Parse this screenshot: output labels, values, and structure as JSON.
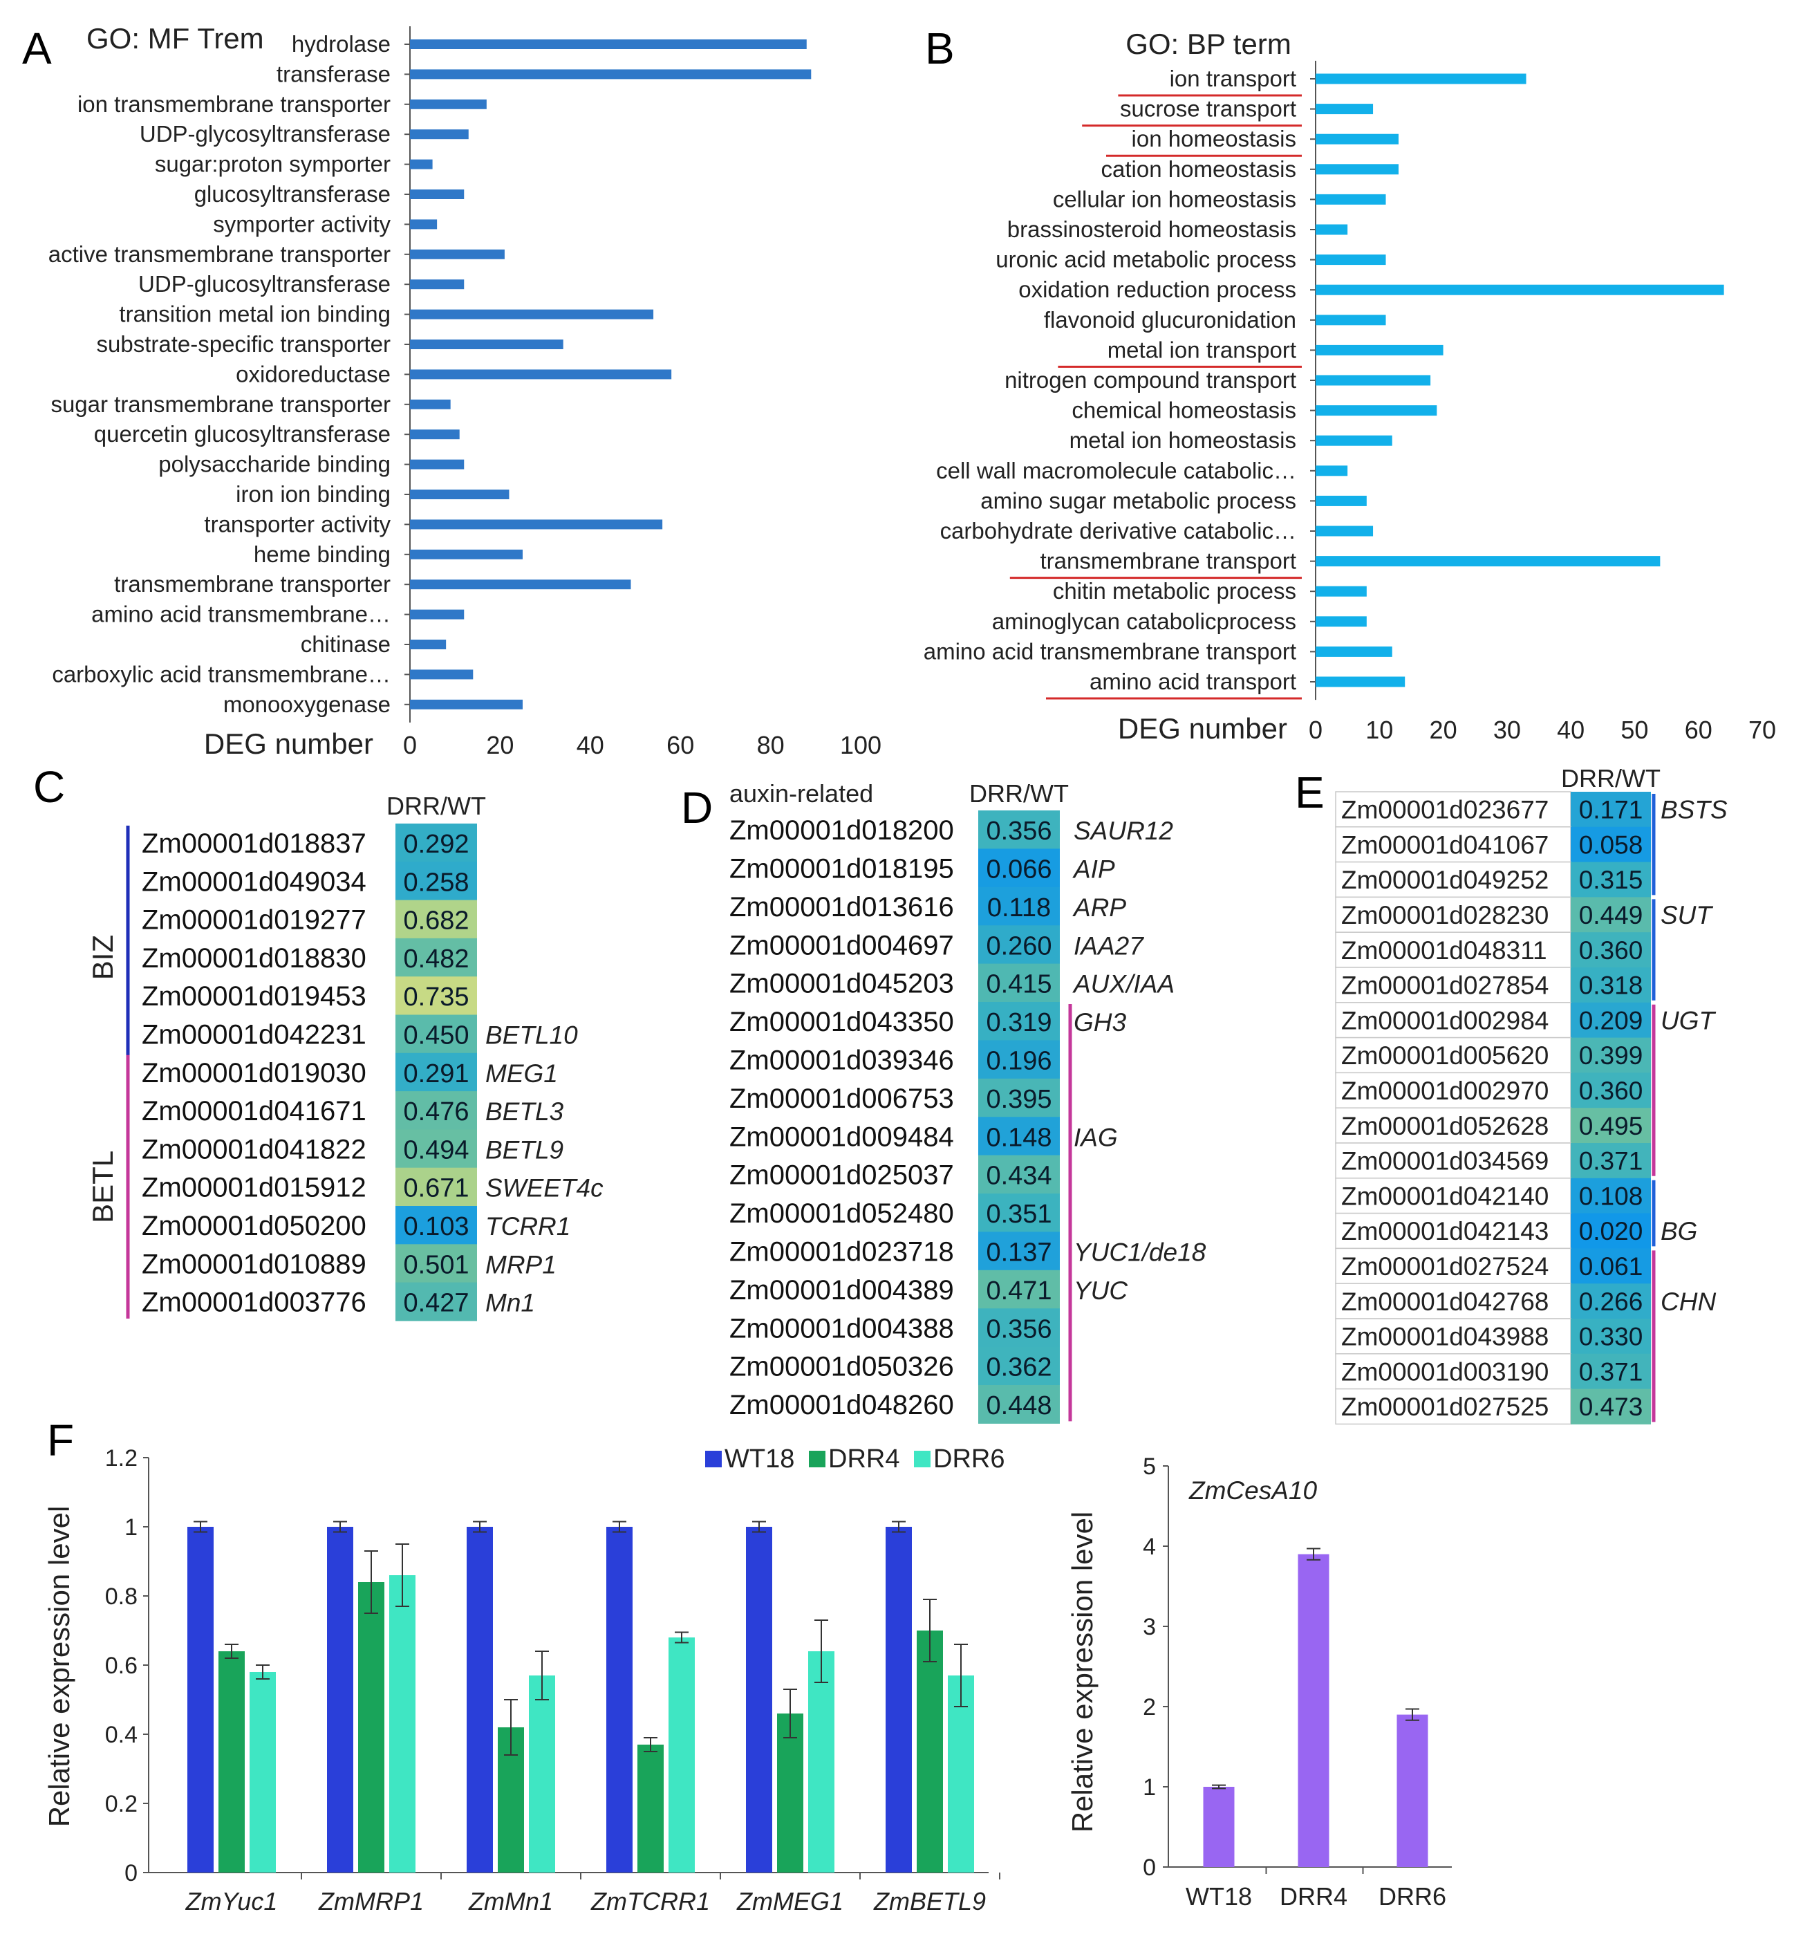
{
  "panels": {
    "A": "A",
    "B": "B",
    "C": "C",
    "D": "D",
    "E": "E",
    "F": "F"
  },
  "chart_data": [
    {
      "id": "A",
      "type": "bar",
      "orientation": "horizontal",
      "title": "GO: MF Trem",
      "xlabel": "DEG number",
      "xlim": [
        0,
        100
      ],
      "xticks": [
        0,
        20,
        40,
        60,
        80,
        100
      ],
      "color": "#2f78c8",
      "categories": [
        "hydrolase",
        "transferase",
        "ion transmembrane transporter",
        "UDP-glycosyltransferase",
        "sugar:proton  symporter",
        "glucosyltransferase",
        "symporter activity",
        "active transmembrane transporter",
        "UDP-glucosyltransferase",
        "transition metal ion binding",
        "substrate-specific transporter",
        "oxidoreductase",
        "sugar transmembrane transporter",
        "quercetin glucosyltransferase",
        "polysaccharide binding",
        "iron ion binding",
        "transporter activity",
        "heme binding",
        "transmembrane transporter",
        "amino acid transmembrane…",
        "chitinase",
        "carboxylic acid transmembrane…",
        "monooxygenase"
      ],
      "values": [
        88,
        89,
        17,
        13,
        5,
        12,
        6,
        21,
        12,
        54,
        34,
        58,
        9,
        11,
        12,
        22,
        56,
        25,
        49,
        12,
        8,
        14,
        25
      ]
    },
    {
      "id": "B",
      "type": "bar",
      "orientation": "horizontal",
      "title": "GO: BP term",
      "xlabel": "DEG number",
      "xlim": [
        0,
        70
      ],
      "xticks": [
        0,
        10,
        20,
        30,
        40,
        50,
        60,
        70
      ],
      "color": "#12b0ea",
      "underline_color": "#d42a2a",
      "categories": [
        "ion  transport",
        "sucrose transport",
        "ion homeostasis",
        "cation homeostasis",
        "cellular ion homeostasis",
        "brassinosteroid homeostasis",
        "uronic acid metabolic process",
        "oxidation reduction process",
        "flavonoid glucuronidation",
        "metal ion transport",
        "nitrogen compound transport",
        "chemical homeostasis",
        "metal ion homeostasis",
        "cell wall macromolecule catabolic…",
        "amino sugar metabolic process",
        "carbohydrate derivative catabolic…",
        "transmembrane transport",
        "chitin metabolic process",
        "aminoglycan catabolicprocess",
        "amino acid transmembrane transport",
        "amino acid transport"
      ],
      "values": [
        33,
        9,
        13,
        13,
        11,
        5,
        11,
        64,
        11,
        20,
        18,
        19,
        12,
        5,
        8,
        9,
        54,
        8,
        8,
        12,
        14
      ],
      "underlined": [
        true,
        true,
        true,
        false,
        false,
        false,
        false,
        false,
        false,
        true,
        false,
        false,
        false,
        false,
        false,
        false,
        true,
        false,
        false,
        false,
        true
      ]
    },
    {
      "id": "C",
      "type": "table",
      "header": "DRR/WT",
      "rows": [
        {
          "gene": "Zm00001d018837",
          "value": "0.292",
          "name": ""
        },
        {
          "gene": "Zm00001d049034",
          "value": "0.258",
          "name": ""
        },
        {
          "gene": "Zm00001d019277",
          "value": "0.682",
          "name": ""
        },
        {
          "gene": "Zm00001d018830",
          "value": "0.482",
          "name": ""
        },
        {
          "gene": "Zm00001d019453",
          "value": "0.735",
          "name": ""
        },
        {
          "gene": "Zm00001d042231",
          "value": "0.450",
          "name": "BETL10"
        },
        {
          "gene": "Zm00001d019030",
          "value": "0.291",
          "name": "MEG1"
        },
        {
          "gene": "Zm00001d041671",
          "value": "0.476",
          "name": "BETL3"
        },
        {
          "gene": "Zm00001d041822",
          "value": "0.494",
          "name": "BETL9"
        },
        {
          "gene": "Zm00001d015912",
          "value": "0.671",
          "name": "SWEET4c"
        },
        {
          "gene": "Zm00001d050200",
          "value": "0.103",
          "name": "TCRR1"
        },
        {
          "gene": "Zm00001d010889",
          "value": "0.501",
          "name": "MRP1"
        },
        {
          "gene": "Zm00001d003776",
          "value": "0.427",
          "name": "Mn1"
        }
      ],
      "groups": [
        {
          "name": "BIZ",
          "start": 0,
          "end": 6,
          "color": "#1f2fb8"
        },
        {
          "name": "BETL",
          "start": 6,
          "end": 12,
          "color": "#c4379a"
        }
      ]
    },
    {
      "id": "D",
      "type": "table",
      "caption": "auxin-related",
      "header": "DRR/WT",
      "rows": [
        {
          "gene": "Zm00001d018200",
          "value": "0.356",
          "name": "SAUR12"
        },
        {
          "gene": "Zm00001d018195",
          "value": "0.066",
          "name": "AIP"
        },
        {
          "gene": "Zm00001d013616",
          "value": "0.118",
          "name": "ARP"
        },
        {
          "gene": "Zm00001d004697",
          "value": "0.260",
          "name": "IAA27"
        },
        {
          "gene": "Zm00001d045203",
          "value": "0.415",
          "name": "AUX/IAA"
        },
        {
          "gene": "Zm00001d043350",
          "value": "0.319",
          "name": "GH3"
        },
        {
          "gene": "Zm00001d039346",
          "value": "0.196",
          "name": ""
        },
        {
          "gene": "Zm00001d006753",
          "value": "0.395",
          "name": ""
        },
        {
          "gene": "Zm00001d009484",
          "value": "0.148",
          "name": "IAG"
        },
        {
          "gene": "Zm00001d025037",
          "value": "0.434",
          "name": ""
        },
        {
          "gene": "Zm00001d052480",
          "value": "0.351",
          "name": ""
        },
        {
          "gene": "Zm00001d023718",
          "value": "0.137",
          "name": "YUC1/de18"
        },
        {
          "gene": "Zm00001d004389",
          "value": "0.471",
          "name": "YUC"
        },
        {
          "gene": "Zm00001d004388",
          "value": "0.356",
          "name": ""
        },
        {
          "gene": "Zm00001d050326",
          "value": "0.362",
          "name": ""
        },
        {
          "gene": "Zm00001d048260",
          "value": "0.448",
          "name": ""
        }
      ],
      "groups": [
        {
          "name": "",
          "start": 5,
          "end": 15,
          "color": "#c4379a"
        }
      ]
    },
    {
      "id": "E",
      "type": "table",
      "header": "DRR/WT",
      "rows": [
        {
          "gene": "Zm00001d023677",
          "value": "0.171",
          "name": "BSTS"
        },
        {
          "gene": "Zm00001d041067",
          "value": "0.058",
          "name": ""
        },
        {
          "gene": "Zm00001d049252",
          "value": "0.315",
          "name": ""
        },
        {
          "gene": "Zm00001d028230",
          "value": "0.449",
          "name": "SUT"
        },
        {
          "gene": "Zm00001d048311",
          "value": "0.360",
          "name": ""
        },
        {
          "gene": "Zm00001d027854",
          "value": "0.318",
          "name": ""
        },
        {
          "gene": "Zm00001d002984",
          "value": "0.209",
          "name": "UGT"
        },
        {
          "gene": "Zm00001d005620",
          "value": "0.399",
          "name": ""
        },
        {
          "gene": "Zm00001d002970",
          "value": "0.360",
          "name": ""
        },
        {
          "gene": "Zm00001d052628",
          "value": "0.495",
          "name": ""
        },
        {
          "gene": "Zm00001d034569",
          "value": "0.371",
          "name": ""
        },
        {
          "gene": "Zm00001d042140",
          "value": "0.108",
          "name": ""
        },
        {
          "gene": "Zm00001d042143",
          "value": "0.020",
          "name": "BG"
        },
        {
          "gene": "Zm00001d027524",
          "value": "0.061",
          "name": ""
        },
        {
          "gene": "Zm00001d042768",
          "value": "0.266",
          "name": "CHN"
        },
        {
          "gene": "Zm00001d043988",
          "value": "0.330",
          "name": ""
        },
        {
          "gene": "Zm00001d003190",
          "value": "0.371",
          "name": ""
        },
        {
          "gene": "Zm00001d027525",
          "value": "0.473",
          "name": ""
        }
      ],
      "groups": [
        {
          "name": "BSTS",
          "start": 0,
          "end": 2,
          "color": "#1f5fd8"
        },
        {
          "name": "SUT",
          "start": 3,
          "end": 5,
          "color": "#1f5fd8"
        },
        {
          "name": "UGT",
          "start": 6,
          "end": 10,
          "color": "#c4379a"
        },
        {
          "name": "BG",
          "start": 11,
          "end": 12,
          "color": "#1f5fd8"
        },
        {
          "name": "CHN",
          "start": 13,
          "end": 17,
          "color": "#c4379a"
        }
      ]
    },
    {
      "id": "F1",
      "type": "bar",
      "ylabel": "Relative expression level",
      "ylim": [
        0,
        1.2
      ],
      "yticks": [
        "0",
        "0.2",
        "0.4",
        "0.6",
        "0.8",
        "1",
        "1.2"
      ],
      "categories": [
        "ZmYuc1",
        "ZmMRP1",
        "ZmMn1",
        "ZmTCRR1",
        "ZmMEG1",
        "ZmBETL9"
      ],
      "series": [
        {
          "name": "WT18",
          "color": "#2a3fd9",
          "values": [
            1.0,
            1.0,
            1.0,
            1.0,
            1.0,
            1.0
          ],
          "errors": [
            0.015,
            0.015,
            0.015,
            0.015,
            0.015,
            0.015
          ]
        },
        {
          "name": "DRR4",
          "color": "#19a45a",
          "values": [
            0.64,
            0.84,
            0.42,
            0.37,
            0.46,
            0.7
          ],
          "errors": [
            0.02,
            0.09,
            0.08,
            0.02,
            0.07,
            0.09
          ]
        },
        {
          "name": "DRR6",
          "color": "#3fe6c3",
          "values": [
            0.58,
            0.86,
            0.57,
            0.68,
            0.64,
            0.57
          ],
          "errors": [
            0.02,
            0.09,
            0.07,
            0.015,
            0.09,
            0.09
          ]
        }
      ]
    },
    {
      "id": "F2",
      "type": "bar",
      "title": "ZmCesA10",
      "ylabel": "Relative expression level",
      "ylim": [
        0,
        5
      ],
      "yticks": [
        "0",
        "1",
        "2",
        "3",
        "4",
        "5"
      ],
      "categories": [
        "WT18",
        "DRR4",
        "DRR6"
      ],
      "color": "#9966f2",
      "values": [
        1.0,
        3.9,
        1.9
      ],
      "errors": [
        0.02,
        0.07,
        0.07
      ]
    }
  ]
}
